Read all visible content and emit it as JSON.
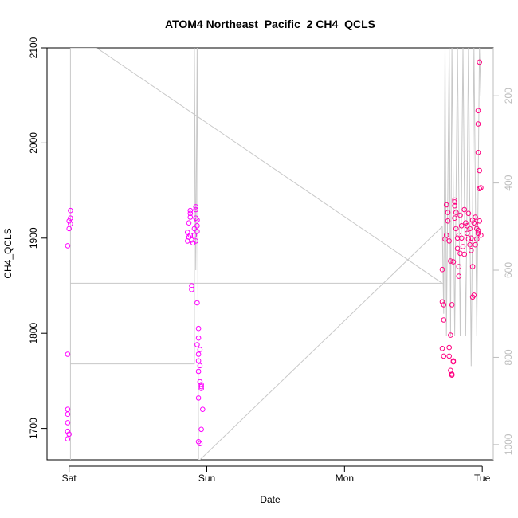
{
  "chart_data": {
    "type": "scatter",
    "title": "ATOM4 Northeast_Pacific_2 CH4_QCLS",
    "xlabel": "Date",
    "ylabel": "CH4_QCLS",
    "x_unit": "days",
    "x_tick_labels": [
      "Sat",
      "Sun",
      "Mon",
      "Tue"
    ],
    "x_ticks": [
      0,
      1,
      2,
      3
    ],
    "xlim": [
      -0.16,
      3.08
    ],
    "ylim": [
      1667,
      2100
    ],
    "y_ticks": [
      1700,
      1800,
      1900,
      2000,
      2100
    ],
    "y2_ticks": [
      200,
      400,
      600,
      800,
      1000
    ],
    "y2lim": [
      1035,
      90
    ],
    "grid": false,
    "colors": {
      "points_primary": "#ff00ff",
      "points_secondary": "#ff0080",
      "altitude_line": "#c8c8c8",
      "right_axis": "#bdbdbd"
    },
    "series": [
      {
        "marker": "open-circle",
        "points": [
          {
            "x": 0.01,
            "y": 1929
          },
          {
            "x": 0.01,
            "y": 1921
          },
          {
            "x": 0.0,
            "y": 1918
          },
          {
            "x": 0.01,
            "y": 1915
          },
          {
            "x": 0.0,
            "y": 1910
          },
          {
            "x": -0.01,
            "y": 1892
          },
          {
            "x": -0.01,
            "y": 1778
          },
          {
            "x": -0.01,
            "y": 1720
          },
          {
            "x": -0.01,
            "y": 1715
          },
          {
            "x": -0.01,
            "y": 1706
          },
          {
            "x": -0.01,
            "y": 1697
          },
          {
            "x": 0.0,
            "y": 1694
          },
          {
            "x": -0.01,
            "y": 1689
          },
          {
            "x": 0.86,
            "y": 1906
          },
          {
            "x": 0.87,
            "y": 1901
          },
          {
            "x": 0.86,
            "y": 1897
          },
          {
            "x": 0.88,
            "y": 1929
          },
          {
            "x": 0.88,
            "y": 1926
          },
          {
            "x": 0.88,
            "y": 1922
          },
          {
            "x": 0.87,
            "y": 1916
          },
          {
            "x": 0.88,
            "y": 1903
          },
          {
            "x": 0.89,
            "y": 1898
          },
          {
            "x": 0.9,
            "y": 1895
          },
          {
            "x": 0.89,
            "y": 1850
          },
          {
            "x": 0.89,
            "y": 1846
          },
          {
            "x": 0.91,
            "y": 1910
          },
          {
            "x": 0.91,
            "y": 1903
          },
          {
            "x": 0.92,
            "y": 1933
          },
          {
            "x": 0.92,
            "y": 1930
          },
          {
            "x": 0.92,
            "y": 1921
          },
          {
            "x": 0.93,
            "y": 1919
          },
          {
            "x": 0.93,
            "y": 1913
          },
          {
            "x": 0.93,
            "y": 1907
          },
          {
            "x": 0.92,
            "y": 1897
          },
          {
            "x": 0.93,
            "y": 1832
          },
          {
            "x": 0.94,
            "y": 1805
          },
          {
            "x": 0.94,
            "y": 1795
          },
          {
            "x": 0.93,
            "y": 1788
          },
          {
            "x": 0.95,
            "y": 1783
          },
          {
            "x": 0.94,
            "y": 1778
          },
          {
            "x": 0.94,
            "y": 1771
          },
          {
            "x": 0.95,
            "y": 1766
          },
          {
            "x": 0.94,
            "y": 1760
          },
          {
            "x": 0.95,
            "y": 1749
          },
          {
            "x": 0.96,
            "y": 1746
          },
          {
            "x": 0.96,
            "y": 1744
          },
          {
            "x": 0.96,
            "y": 1742
          },
          {
            "x": 0.94,
            "y": 1732
          },
          {
            "x": 0.97,
            "y": 1720
          },
          {
            "x": 0.96,
            "y": 1699
          },
          {
            "x": 0.94,
            "y": 1686
          },
          {
            "x": 0.95,
            "y": 1684
          }
        ]
      },
      {
        "marker": "open-circle",
        "points": [
          {
            "x": 2.71,
            "y": 1867
          },
          {
            "x": 2.71,
            "y": 1833
          },
          {
            "x": 2.72,
            "y": 1830
          },
          {
            "x": 2.73,
            "y": 1899
          },
          {
            "x": 2.72,
            "y": 1814
          },
          {
            "x": 2.71,
            "y": 1784
          },
          {
            "x": 2.72,
            "y": 1776
          },
          {
            "x": 2.74,
            "y": 1903
          },
          {
            "x": 2.74,
            "y": 1935
          },
          {
            "x": 2.75,
            "y": 1927
          },
          {
            "x": 2.75,
            "y": 1918
          },
          {
            "x": 2.76,
            "y": 1897
          },
          {
            "x": 2.76,
            "y": 1785
          },
          {
            "x": 2.77,
            "y": 1798
          },
          {
            "x": 2.76,
            "y": 1776
          },
          {
            "x": 2.77,
            "y": 1761
          },
          {
            "x": 2.78,
            "y": 1756
          },
          {
            "x": 2.79,
            "y": 1770
          },
          {
            "x": 2.78,
            "y": 1830
          },
          {
            "x": 2.79,
            "y": 1875
          },
          {
            "x": 2.8,
            "y": 1940
          },
          {
            "x": 2.8,
            "y": 1934
          },
          {
            "x": 2.8,
            "y": 1921
          },
          {
            "x": 2.81,
            "y": 1910
          },
          {
            "x": 2.82,
            "y": 1900
          },
          {
            "x": 2.82,
            "y": 1889
          },
          {
            "x": 2.83,
            "y": 1870
          },
          {
            "x": 2.83,
            "y": 1860
          },
          {
            "x": 2.84,
            "y": 1924
          },
          {
            "x": 2.85,
            "y": 1900
          },
          {
            "x": 2.86,
            "y": 1891
          },
          {
            "x": 2.87,
            "y": 1883
          },
          {
            "x": 2.87,
            "y": 1930
          },
          {
            "x": 2.88,
            "y": 1916
          },
          {
            "x": 2.89,
            "y": 1905
          },
          {
            "x": 2.9,
            "y": 1926
          },
          {
            "x": 2.9,
            "y": 1899
          },
          {
            "x": 2.91,
            "y": 1893
          },
          {
            "x": 2.92,
            "y": 1887
          },
          {
            "x": 2.93,
            "y": 1919
          },
          {
            "x": 2.93,
            "y": 1870
          },
          {
            "x": 2.94,
            "y": 1840
          },
          {
            "x": 2.93,
            "y": 1838
          },
          {
            "x": 2.95,
            "y": 1922
          },
          {
            "x": 2.95,
            "y": 1915
          },
          {
            "x": 2.96,
            "y": 1910
          },
          {
            "x": 2.96,
            "y": 1899
          },
          {
            "x": 2.97,
            "y": 1905
          },
          {
            "x": 2.97,
            "y": 1990
          },
          {
            "x": 2.98,
            "y": 2085
          },
          {
            "x": 2.97,
            "y": 2034
          },
          {
            "x": 2.97,
            "y": 2020
          },
          {
            "x": 2.98,
            "y": 1971
          },
          {
            "x": 2.98,
            "y": 1952
          },
          {
            "x": 2.99,
            "y": 1953
          },
          {
            "x": 2.98,
            "y": 1918
          },
          {
            "x": 2.97,
            "y": 1908
          },
          {
            "x": 2.99,
            "y": 1903
          },
          {
            "x": 2.77,
            "y": 1876
          },
          {
            "x": 2.79,
            "y": 1771
          },
          {
            "x": 2.78,
            "y": 1757
          },
          {
            "x": 2.83,
            "y": 1903
          },
          {
            "x": 2.85,
            "y": 1913
          },
          {
            "x": 2.89,
            "y": 1913
          },
          {
            "x": 2.91,
            "y": 1910
          },
          {
            "x": 2.92,
            "y": 1900
          },
          {
            "x": 2.8,
            "y": 1938
          },
          {
            "x": 2.81,
            "y": 1927
          },
          {
            "x": 2.84,
            "y": 1884
          },
          {
            "x": 2.94,
            "y": 1916
          },
          {
            "x": 2.95,
            "y": 1893
          }
        ]
      }
    ],
    "altitude_line": {
      "points": [
        {
          "x": 0.01,
          "y2": 1035
        },
        {
          "x": 0.01,
          "y2": 90
        },
        {
          "x": 0.2,
          "y2": 90
        },
        {
          "x": 2.71,
          "y2": 630
        },
        {
          "x": 0.01,
          "y2": 630
        },
        {
          "x": 0.01,
          "y2": 815
        },
        {
          "x": 0.91,
          "y2": 815
        },
        {
          "x": 0.91,
          "y2": 720
        },
        {
          "x": 0.91,
          "y2": 90
        },
        {
          "x": 0.92,
          "y2": 600
        },
        {
          "x": 0.93,
          "y2": 90
        },
        {
          "x": 0.94,
          "y2": 1035
        },
        {
          "x": 0.95,
          "y2": 1035
        },
        {
          "x": 2.71,
          "y2": 500
        },
        {
          "x": 2.72,
          "y2": 700
        },
        {
          "x": 2.73,
          "y2": 90
        },
        {
          "x": 2.74,
          "y2": 750
        },
        {
          "x": 2.76,
          "y2": 90
        },
        {
          "x": 2.77,
          "y2": 750
        },
        {
          "x": 2.78,
          "y2": 90
        },
        {
          "x": 2.8,
          "y2": 750
        },
        {
          "x": 2.82,
          "y2": 90
        },
        {
          "x": 2.84,
          "y2": 750
        },
        {
          "x": 2.86,
          "y2": 90
        },
        {
          "x": 2.88,
          "y2": 750
        },
        {
          "x": 2.9,
          "y2": 90
        },
        {
          "x": 2.92,
          "y2": 820
        },
        {
          "x": 2.94,
          "y2": 90
        },
        {
          "x": 2.96,
          "y2": 750
        },
        {
          "x": 2.98,
          "y2": 90
        },
        {
          "x": 2.99,
          "y2": 200
        }
      ]
    }
  }
}
